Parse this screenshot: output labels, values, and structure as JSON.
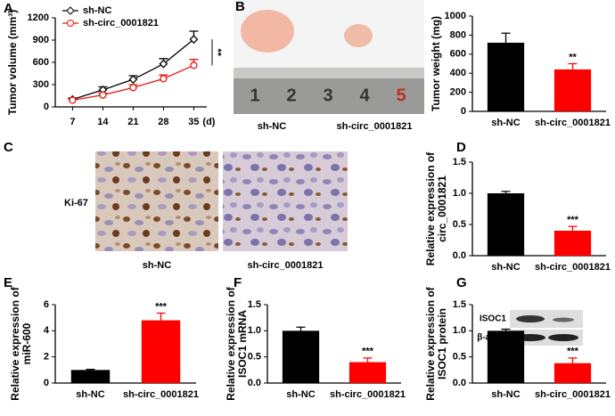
{
  "panel_letters": [
    "A",
    "B",
    "C",
    "D",
    "E",
    "F",
    "G"
  ],
  "photos": {
    "b_labels": [
      "sh-NC",
      "sh-circ_0001821"
    ],
    "ruler": [
      "1",
      "2",
      "3",
      "4",
      "5"
    ],
    "c_stain": "Ki-67",
    "c_labels": [
      "sh-NC",
      "sh-circ_0001821"
    ],
    "blot": [
      "ISOC1",
      "β-actin"
    ]
  },
  "chart_data": [
    {
      "type": "line",
      "ylabel": [
        "Tumor volume (mm³)"
      ],
      "x": [
        7,
        14,
        21,
        28,
        35
      ],
      "x_unit": "(d)",
      "xlim": [
        3,
        38
      ],
      "xticks": [
        7,
        14,
        21,
        28,
        35
      ],
      "ylim": [
        0,
        1200
      ],
      "yticks": [
        0,
        300,
        600,
        900,
        1200
      ],
      "legend": "top-left",
      "annotation": "**",
      "series": [
        {
          "name": "sh-NC",
          "color": "#000000",
          "marker": "diamond",
          "values": [
            100,
            230,
            370,
            580,
            910
          ],
          "errors": [
            20,
            40,
            50,
            70,
            110
          ]
        },
        {
          "name": "sh-circ_0001821",
          "color": "#e8140f",
          "marker": "circle",
          "values": [
            90,
            160,
            260,
            380,
            560
          ],
          "errors": [
            15,
            25,
            40,
            50,
            80
          ]
        }
      ]
    },
    {
      "type": "bar",
      "ylabel": [
        "Tumor weight (mg)"
      ],
      "categories": [
        "sh-NC",
        "sh-circ_0001821"
      ],
      "values": [
        720,
        440
      ],
      "errors": [
        100,
        60
      ],
      "colors": [
        "#000000",
        "#ff0000"
      ],
      "ylim": [
        0,
        1000
      ],
      "yticks": [
        0,
        200,
        400,
        600,
        800,
        1000
      ],
      "annotation": "**"
    },
    {
      "type": "bar",
      "ylabel": [
        "Relative expression of",
        "circ_0001821"
      ],
      "categories": [
        "sh-NC",
        "sh-circ_0001821"
      ],
      "values": [
        1.0,
        0.4
      ],
      "errors": [
        0.03,
        0.07
      ],
      "colors": [
        "#000000",
        "#ff0000"
      ],
      "ylim": [
        0,
        1.5
      ],
      "yticks": [
        {
          "value": 0,
          "label": "0.0"
        },
        0.5,
        {
          "value": 1,
          "label": "1.0"
        },
        1.5
      ],
      "annotation": "***"
    },
    {
      "type": "bar",
      "ylabel": [
        "Relative expression of",
        "miR-600"
      ],
      "categories": [
        "sh-NC",
        "sh-circ_0001821"
      ],
      "values": [
        1.0,
        4.8
      ],
      "errors": [
        0.05,
        0.55
      ],
      "colors": [
        "#000000",
        "#ff0000"
      ],
      "ylim": [
        0,
        6
      ],
      "yticks": [
        0,
        2,
        4,
        6
      ],
      "annotation": "***"
    },
    {
      "type": "bar",
      "ylabel": [
        "Relative expression of",
        "ISOC1 mRNA"
      ],
      "categories": [
        "sh-NC",
        "sh-circ_0001821"
      ],
      "values": [
        1.0,
        0.4
      ],
      "errors": [
        0.07,
        0.08
      ],
      "colors": [
        "#000000",
        "#ff0000"
      ],
      "ylim": [
        0,
        1.5
      ],
      "yticks": [
        {
          "value": 0,
          "label": "0.0"
        },
        0.5,
        {
          "value": 1,
          "label": "1.0"
        },
        1.5
      ],
      "annotation": "***"
    },
    {
      "type": "bar",
      "ylabel": [
        "Relative expression of",
        "ISOC1 protein"
      ],
      "categories": [
        "sh-NC",
        "sh-circ_0001821"
      ],
      "values": [
        1.0,
        0.38
      ],
      "errors": [
        0.03,
        0.1
      ],
      "colors": [
        "#000000",
        "#ff0000"
      ],
      "ylim": [
        0,
        1.5
      ],
      "yticks": [
        {
          "value": 0,
          "label": "0.0"
        },
        0.5,
        {
          "value": 1,
          "label": "1.0"
        },
        1.5
      ],
      "annotation": "***"
    }
  ]
}
